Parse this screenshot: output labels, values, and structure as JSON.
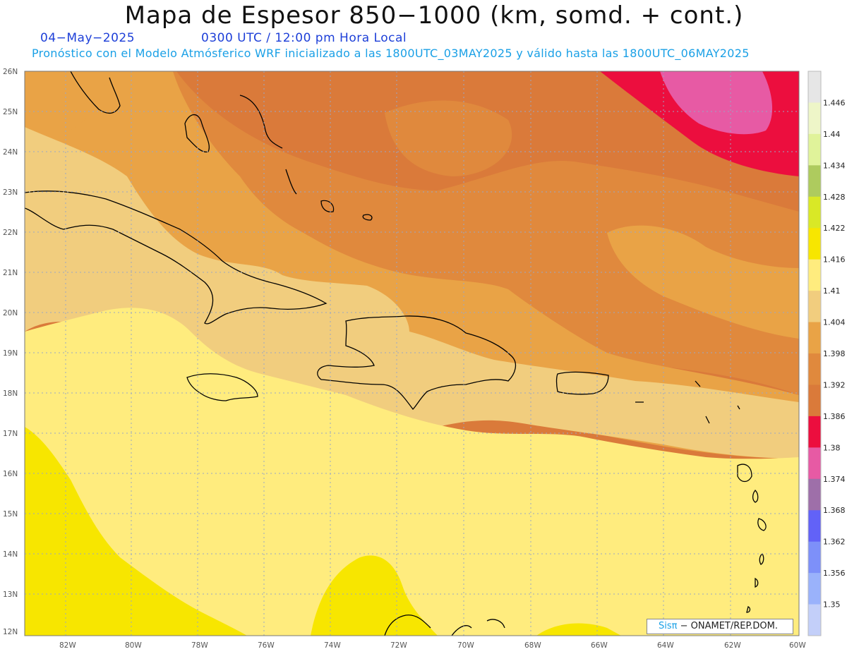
{
  "title": "Mapa de Espesor 850−1000 (km, somd. + cont.)",
  "date": "04−May−2025",
  "time": "0300 UTC / 12:00 pm Hora Local",
  "model_text": "Pronóstico con el Modelo Atmósferico WRF inicializado a las 1800UTC_03MAY2025 y válido hasta las  1800UTC_06MAY2025",
  "credit": {
    "brand": "Sisπ",
    "org": " − ONAMET/REP.DOM."
  },
  "lat_labels": [
    "26N",
    "25N",
    "24N",
    "23N",
    "22N",
    "21N",
    "20N",
    "19N",
    "18N",
    "17N",
    "16N",
    "15N",
    "14N",
    "13N",
    "12N"
  ],
  "lon_labels": [
    "82W",
    "80W",
    "78W",
    "76W",
    "74W",
    "72W",
    "70W",
    "68W",
    "66W",
    "64W",
    "62W",
    "60W"
  ],
  "colorbar": {
    "labels": [
      "1.446",
      "1.44",
      "1.434",
      "1.428",
      "1.422",
      "1.416",
      "1.41",
      "1.404",
      "1.398",
      "1.392",
      "1.386",
      "1.38",
      "1.374",
      "1.368",
      "1.362",
      "1.356",
      "1.35"
    ],
    "colors": [
      "#e6e6e6",
      "#eef6c8",
      "#e0f39a",
      "#aecb5e",
      "#d9e826",
      "#f7e600",
      "#ffec7e",
      "#f1cd7e",
      "#e9a346",
      "#e0893d",
      "#da7a3a",
      "#ec0e3e",
      "#e75aa4",
      "#9e6fa9",
      "#6262f7",
      "#7d90f9",
      "#9ab2fb",
      "#c3cff9"
    ]
  },
  "map_colors": {
    "yellow_bright": "#f7e600",
    "yellow_light": "#ffec7e",
    "tan": "#f1cd7e",
    "orange_light": "#e9a346",
    "orange": "#e0893d",
    "orange_dark": "#da7a3a",
    "red": "#ec0e3e",
    "pink": "#e75aa4"
  }
}
